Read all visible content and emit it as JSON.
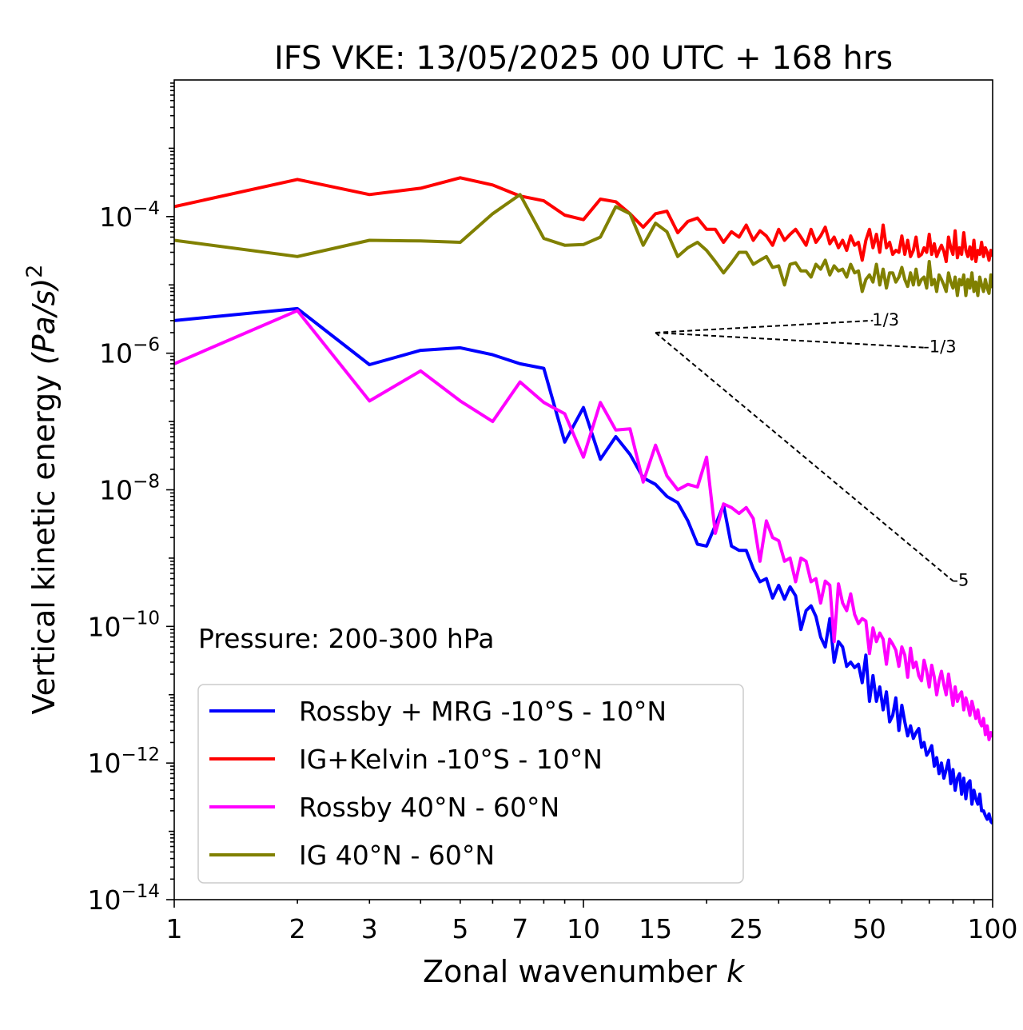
{
  "chart_data": {
    "type": "line",
    "title": "IFS VKE: 13/05/2025 00 UTC + 168 hrs",
    "xlabel": "Zonal wavenumber",
    "xlabel_italic": "k",
    "ylabel": "Vertical kinetic energy",
    "ylabel_unit": "(Pa/s)",
    "ylabel_exponent": "2",
    "x_scale": "log",
    "y_scale": "log",
    "xlim": [
      1,
      100
    ],
    "ylim": [
      1e-14,
      0.01
    ],
    "x_ticks": [
      1,
      2,
      3,
      5,
      7,
      10,
      15,
      25,
      50,
      100
    ],
    "x_tick_labels": [
      "1",
      "2",
      "3",
      "5",
      "7",
      "10",
      "15",
      "25",
      "50",
      "100"
    ],
    "y_ticks": [
      1e-14,
      1e-12,
      1e-10,
      1e-08,
      1e-06,
      0.0001
    ],
    "y_tick_base": "10",
    "y_tick_exponents": [
      "−14",
      "−12",
      "−10",
      "−8",
      "−6",
      "−4"
    ],
    "annotation": "Pressure: 200-300 hPa",
    "legend_position": "lower-left",
    "grid": false,
    "reference_slopes": [
      {
        "label": "1/3",
        "slope": 0.3333,
        "x_start": 15,
        "x_end": 51,
        "y_start": 2e-06
      },
      {
        "label": "-1/3",
        "slope": -0.3333,
        "x_start": 15,
        "x_end": 68,
        "y_start": 2e-06
      },
      {
        "label": "-5",
        "slope": -5,
        "x_start": 15,
        "x_end": 80,
        "y_start": 2e-06
      }
    ],
    "series": [
      {
        "name": "Rossby + MRG -10°S - 10°N",
        "color": "#0000ff",
        "x": [
          1,
          2,
          3,
          4,
          5,
          6,
          7,
          8,
          9,
          10,
          11,
          12,
          13,
          14,
          15,
          16,
          17,
          18,
          19,
          20,
          21,
          22,
          23,
          24,
          25,
          26,
          27,
          28,
          29,
          30,
          31,
          32,
          33,
          34,
          35,
          36,
          37,
          38,
          39,
          40,
          41,
          42,
          43,
          44,
          45,
          46,
          47,
          48,
          49,
          50,
          51,
          52,
          53,
          54,
          55,
          56,
          57,
          58,
          59,
          60,
          61,
          62,
          63,
          64,
          65,
          66,
          67,
          68,
          69,
          70,
          71,
          72,
          73,
          74,
          75,
          76,
          77,
          78,
          79,
          80,
          81,
          82,
          83,
          84,
          85,
          86,
          87,
          88,
          89,
          90,
          91,
          92,
          93,
          94,
          95,
          96,
          97,
          98,
          99,
          100
        ],
        "y": [
          3e-06,
          4.5e-06,
          6.8e-07,
          1.1e-06,
          1.2e-06,
          9.5e-07,
          7e-07,
          6e-07,
          5e-08,
          1.6e-07,
          2.8e-08,
          6e-08,
          3.3e-08,
          1.5e-08,
          1.2e-08,
          8e-09,
          6.5e-09,
          3.5e-09,
          1.6e-09,
          1.5e-09,
          3e-09,
          6e-09,
          1.5e-09,
          1.3e-09,
          1.3e-09,
          7e-10,
          4.5e-10,
          5e-10,
          2.6e-10,
          4e-10,
          2.5e-10,
          3.8e-10,
          2.8e-10,
          9e-11,
          1.7e-10,
          2e-10,
          1.4e-10,
          7e-11,
          5e-11,
          1.3e-10,
          3e-11,
          6e-11,
          5e-11,
          2.6e-11,
          3e-11,
          2.5e-11,
          2.8e-11,
          1.5e-11,
          3.8e-11,
          8e-12,
          1.9e-11,
          8e-12,
          1.3e-11,
          6e-12,
          1.1e-11,
          4e-12,
          5e-12,
          9e-12,
          3e-12,
          7e-12,
          4e-12,
          2.5e-12,
          3.5e-12,
          2.3e-12,
          2.8e-12,
          3.2e-12,
          1.7e-12,
          2e-12,
          1.3e-12,
          1.5e-12,
          1.8e-12,
          9e-13,
          1.2e-12,
          7e-13,
          1e-12,
          6e-13,
          8e-13,
          1.1e-12,
          5e-13,
          8e-13,
          4e-13,
          6e-13,
          7e-13,
          3.5e-13,
          6e-13,
          3e-13,
          5e-13,
          5.5e-13,
          2.5e-13,
          4e-13,
          3e-13,
          2.5e-13,
          3.5e-13,
          2e-13,
          2e-13,
          1.7e-13,
          1.5e-13,
          1.8e-13,
          1.4e-13,
          1.3e-13
        ]
      },
      {
        "name": "IG+Kelvin -10°S - 10°N",
        "color": "#ff0000",
        "x": [
          1,
          2,
          3,
          4,
          5,
          6,
          7,
          8,
          9,
          10,
          11,
          12,
          13,
          14,
          15,
          16,
          17,
          18,
          19,
          20,
          21,
          22,
          23,
          24,
          25,
          26,
          27,
          28,
          29,
          30,
          31,
          32,
          33,
          34,
          35,
          36,
          37,
          38,
          39,
          40,
          41,
          42,
          43,
          44,
          45,
          46,
          47,
          48,
          49,
          50,
          51,
          52,
          53,
          54,
          55,
          56,
          57,
          58,
          59,
          60,
          61,
          62,
          63,
          64,
          65,
          66,
          67,
          68,
          69,
          70,
          71,
          72,
          73,
          74,
          75,
          76,
          77,
          78,
          79,
          80,
          81,
          82,
          83,
          84,
          85,
          86,
          87,
          88,
          89,
          90,
          91,
          92,
          93,
          94,
          95,
          96,
          97,
          98,
          99,
          100
        ],
        "y": [
          0.00014,
          0.00035,
          0.00021,
          0.00026,
          0.00037,
          0.00029,
          0.0002,
          0.00017,
          0.000105,
          9e-05,
          0.00018,
          0.000165,
          0.00011,
          7e-05,
          0.00011,
          0.00012,
          5.8e-05,
          8.5e-05,
          9.5e-05,
          6.5e-05,
          6.5e-05,
          4.2e-05,
          6e-05,
          5e-05,
          7.5e-05,
          4.5e-05,
          6.2e-05,
          5.2e-05,
          3.8e-05,
          6.5e-05,
          4.5e-05,
          5.5e-05,
          6.5e-05,
          5e-05,
          3.8e-05,
          6.5e-05,
          4.2e-05,
          5.2e-05,
          7e-05,
          4e-05,
          5e-05,
          3.5e-05,
          4.5e-05,
          3.2e-05,
          5.2e-05,
          3.8e-05,
          4.2e-05,
          2.3e-05,
          4.5e-05,
          6.5e-05,
          3.5e-05,
          5.5e-05,
          3e-05,
          7.5e-05,
          3.5e-05,
          4.2e-05,
          2.8e-05,
          3.2e-05,
          3e-05,
          5.2e-05,
          2.8e-05,
          4.5e-05,
          2.6e-05,
          3.2e-05,
          5e-05,
          2.6e-05,
          2.8e-05,
          3.5e-05,
          3e-05,
          5.5e-05,
          2.8e-05,
          4e-05,
          2.6e-05,
          3.2e-05,
          3.8e-05,
          3.1e-05,
          2.2e-05,
          5e-05,
          3.5e-05,
          2.8e-05,
          6.2e-05,
          2.5e-05,
          3.5e-05,
          2.8e-05,
          5.8e-05,
          3.2e-05,
          2.6e-05,
          3.6e-05,
          2.4e-05,
          4.5e-05,
          2.2e-05,
          3.2e-05,
          2.8e-05,
          4.2e-05,
          2.6e-05,
          3.5e-05,
          3e-05,
          2.3e-05,
          3.2e-05,
          2.6e-05
        ]
      },
      {
        "name": "Rossby 40°N - 60°N",
        "color": "#ff00ff",
        "x": [
          1,
          2,
          3,
          4,
          5,
          6,
          7,
          8,
          9,
          10,
          11,
          12,
          13,
          14,
          15,
          16,
          17,
          18,
          19,
          20,
          21,
          22,
          23,
          24,
          25,
          26,
          27,
          28,
          29,
          30,
          31,
          32,
          33,
          34,
          35,
          36,
          37,
          38,
          39,
          40,
          41,
          42,
          43,
          44,
          45,
          46,
          47,
          48,
          49,
          50,
          51,
          52,
          53,
          54,
          55,
          56,
          57,
          58,
          59,
          60,
          61,
          62,
          63,
          64,
          65,
          66,
          67,
          68,
          69,
          70,
          71,
          72,
          73,
          74,
          75,
          76,
          77,
          78,
          79,
          80,
          81,
          82,
          83,
          84,
          85,
          86,
          87,
          88,
          89,
          90,
          91,
          92,
          93,
          94,
          95,
          96,
          97,
          98,
          99,
          100
        ],
        "y": [
          7e-07,
          4.2e-06,
          2e-07,
          5.5e-07,
          2e-07,
          1e-07,
          3.8e-07,
          1.9e-07,
          1.3e-07,
          3e-08,
          1.9e-07,
          7.5e-08,
          7.8e-08,
          1.3e-08,
          4.5e-08,
          1.6e-08,
          1e-08,
          1.2e-08,
          1.1e-08,
          3e-08,
          2.3e-09,
          6.2e-09,
          5.5e-09,
          4.5e-09,
          5.5e-09,
          3.8e-09,
          9e-10,
          3.5e-09,
          2e-09,
          1.8e-09,
          9e-10,
          1e-09,
          4.5e-10,
          1e-09,
          9e-10,
          4.5e-10,
          5e-10,
          2.2e-10,
          4.6e-10,
          4e-10,
          6e-11,
          4.2e-10,
          2.2e-10,
          1.7e-10,
          3e-10,
          1.5e-10,
          1.1e-10,
          1.3e-10,
          1.2e-10,
          4e-11,
          9.5e-11,
          6e-11,
          8e-11,
          6.5e-11,
          2.8e-11,
          6.5e-11,
          5.5e-11,
          4.5e-11,
          2.6e-11,
          5e-11,
          3.8e-11,
          1.8e-11,
          4.8e-11,
          2.5e-11,
          3e-11,
          1.9e-11,
          1.6e-11,
          3.2e-11,
          2.2e-11,
          1.3e-11,
          2.7e-11,
          1.8e-11,
          1e-11,
          1.6e-11,
          2.2e-11,
          1.4e-11,
          1e-11,
          2e-11,
          1.2e-11,
          7e-12,
          1.3e-11,
          8e-12,
          1e-11,
          1.1e-11,
          6e-12,
          9e-12,
          7e-12,
          5e-12,
          8e-12,
          6e-12,
          4.5e-12,
          6e-12,
          4e-12,
          3.5e-12,
          4.5e-12,
          2.6e-12,
          3.5e-12,
          2.2e-12,
          2.8e-12,
          2.4e-12
        ]
      },
      {
        "name": "IG 40°N - 60°N",
        "color": "#808000",
        "x": [
          1,
          2,
          3,
          4,
          5,
          6,
          7,
          8,
          9,
          10,
          11,
          12,
          13,
          14,
          15,
          16,
          17,
          18,
          19,
          20,
          21,
          22,
          23,
          24,
          25,
          26,
          27,
          28,
          29,
          30,
          31,
          32,
          33,
          34,
          35,
          36,
          37,
          38,
          39,
          40,
          41,
          42,
          43,
          44,
          45,
          46,
          47,
          48,
          49,
          50,
          51,
          52,
          53,
          54,
          55,
          56,
          57,
          58,
          59,
          60,
          61,
          62,
          63,
          64,
          65,
          66,
          67,
          68,
          69,
          70,
          71,
          72,
          73,
          74,
          75,
          76,
          77,
          78,
          79,
          80,
          81,
          82,
          83,
          84,
          85,
          86,
          87,
          88,
          89,
          90,
          91,
          92,
          93,
          94,
          95,
          96,
          97,
          98,
          99,
          100
        ],
        "y": [
          4.5e-05,
          2.6e-05,
          4.5e-05,
          4.4e-05,
          4.2e-05,
          0.00011,
          0.00021,
          4.8e-05,
          3.8e-05,
          3.9e-05,
          5e-05,
          0.00014,
          0.00011,
          3.8e-05,
          8e-05,
          6e-05,
          2.6e-05,
          3.5e-05,
          4.2e-05,
          3.2e-05,
          2.2e-05,
          1.5e-05,
          2.1e-05,
          3e-05,
          3e-05,
          2e-05,
          2.3e-05,
          2.6e-05,
          1.8e-05,
          1.9e-05,
          1e-05,
          2e-05,
          2.1e-05,
          1.6e-05,
          1.6e-05,
          1.3e-05,
          2e-05,
          1.7e-05,
          2.3e-05,
          1.4e-05,
          1.9e-05,
          1.6e-05,
          1.7e-05,
          1.3e-05,
          2e-05,
          1.5e-05,
          1.6e-05,
          8e-06,
          1.2e-05,
          1.4e-05,
          1.1e-05,
          2e-05,
          1e-05,
          1.7e-05,
          9e-06,
          1.5e-05,
          1.5e-05,
          1.1e-05,
          1.3e-05,
          1.8e-05,
          1.2e-05,
          9.5e-06,
          1.5e-05,
          1e-05,
          1.7e-05,
          1e-05,
          1.2e-05,
          1.3e-05,
          9e-06,
          2.2e-05,
          1e-05,
          1.2e-05,
          8e-06,
          1.4e-05,
          1.2e-05,
          1e-05,
          8e-06,
          1.5e-05,
          1.1e-05,
          9e-06,
          1.3e-05,
          7e-06,
          1.2e-05,
          1e-05,
          1.4e-05,
          7e-06,
          1.2e-05,
          9e-06,
          1.5e-05,
          8e-06,
          1.1e-05,
          7e-06,
          1.3e-05,
          1e-05,
          8e-06,
          1.2e-05,
          9e-06,
          7.5e-06,
          1.4e-05,
          9e-06
        ]
      }
    ]
  }
}
